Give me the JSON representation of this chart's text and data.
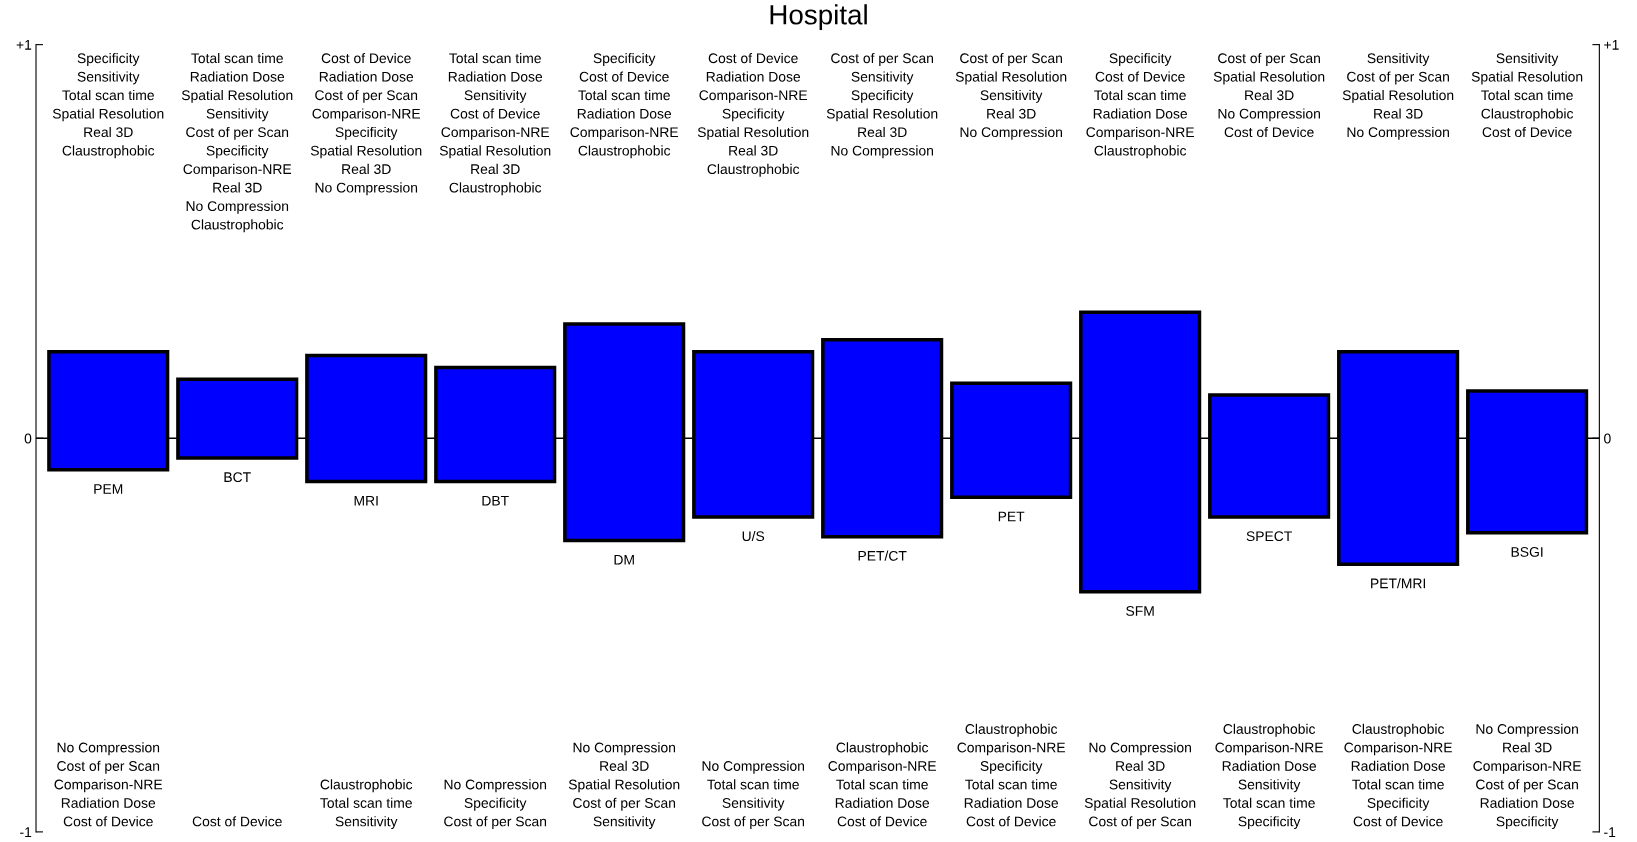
{
  "chart_data": {
    "type": "bar",
    "title": "Hospital",
    "categories": [
      "PEM",
      "BCT",
      "MRI",
      "DBT",
      "DM",
      "U/S",
      "PET/CT",
      "PET",
      "SFM",
      "SPECT",
      "PET/MRI",
      "BSGI"
    ],
    "values": [
      0.3,
      0.2,
      0.32,
      0.29,
      0.55,
      0.42,
      0.5,
      0.29,
      0.71,
      0.31,
      0.54,
      0.36
    ],
    "base": [
      -0.08,
      -0.05,
      -0.11,
      -0.11,
      -0.26,
      -0.2,
      -0.25,
      -0.15,
      -0.39,
      -0.2,
      -0.32,
      -0.24
    ],
    "color": "#0000ff",
    "ylim": [
      -1,
      1
    ],
    "yticks": [
      {
        "value": -1,
        "label": "-1"
      },
      {
        "value": 0,
        "label": "0"
      },
      {
        "value": 1,
        "label": "+1"
      }
    ],
    "ref_lines": [
      {
        "axis": "y",
        "value": 0,
        "color": "#000000"
      }
    ],
    "annotations": [
      "Specificity\nSensitivity\nTotal scan time\nSpatial Resolution\nReal 3D\nClaustrophobic",
      "Total scan time\nRadiation Dose\nSpatial Resolution\nSensitivity\nCost of per Scan\nSpecificity\nComparison-NRE\nReal 3D\nNo Compression\nClaustrophobic",
      "Cost of Device\nRadiation Dose\nCost of per Scan\nComparison-NRE\nSpecificity\nSpatial Resolution\nReal 3D\nNo Compression",
      "Total scan time\nRadiation Dose\nSensitivity\nCost of Device\nComparison-NRE\nSpatial Resolution\nReal 3D\nClaustrophobic",
      "Specificity\nCost of Device\nTotal scan time\nRadiation Dose\nComparison-NRE\nClaustrophobic",
      "Cost of Device\nRadiation Dose\nComparison-NRE\nSpecificity\nSpatial Resolution\nReal 3D\nClaustrophobic",
      "Cost of per Scan\nSensitivity\nSpecificity\nSpatial Resolution\nReal 3D\nNo Compression",
      "Cost of per Scan\nSpatial Resolution\nSensitivity\nReal 3D\nNo Compression",
      "Specificity\nCost of Device\nTotal scan time\nRadiation Dose\nComparison-NRE\nClaustrophobic",
      "Cost of per Scan\nSpatial Resolution\nReal 3D\nNo Compression\nCost of Device",
      "Sensitivity\nCost of per Scan\nSpatial Resolution\nReal 3D\nNo Compression",
      "Sensitivity\nSpatial Resolution\nTotal scan time\nClaustrophobic\nCost of Device",
      "No Compression\nCost of per Scan\nComparison-NRE\nRadiation Dose\nCost of Device",
      "Cost of Device",
      "Claustrophobic\nTotal scan time\nSensitivity",
      "No Compression\nSpecificity\nCost of per Scan",
      "No Compression\nReal 3D\nSpatial Resolution\nCost of per Scan\nSensitivity",
      "No Compression\nTotal scan time\nSensitivity\nCost of per Scan",
      "Claustrophobic\nComparison-NRE\nTotal scan time\nRadiation Dose\nCost of Device",
      "Claustrophobic\nComparison-NRE\nSpecificity\nTotal scan time\nRadiation Dose\nCost of Device",
      "No Compression\nReal 3D\nSensitivity\nSpatial Resolution\nCost of per Scan",
      "Claustrophobic\nComparison-NRE\nRadiation Dose\nSensitivity\nTotal scan time\nSpecificity",
      "Claustrophobic\nComparison-NRE\nRadiation Dose\nTotal scan time\nSpecificity\nCost of Device",
      "No Compression\nReal 3D\nComparison-NRE\nCost of per Scan\nRadiation Dose\nSpecificity"
    ]
  }
}
